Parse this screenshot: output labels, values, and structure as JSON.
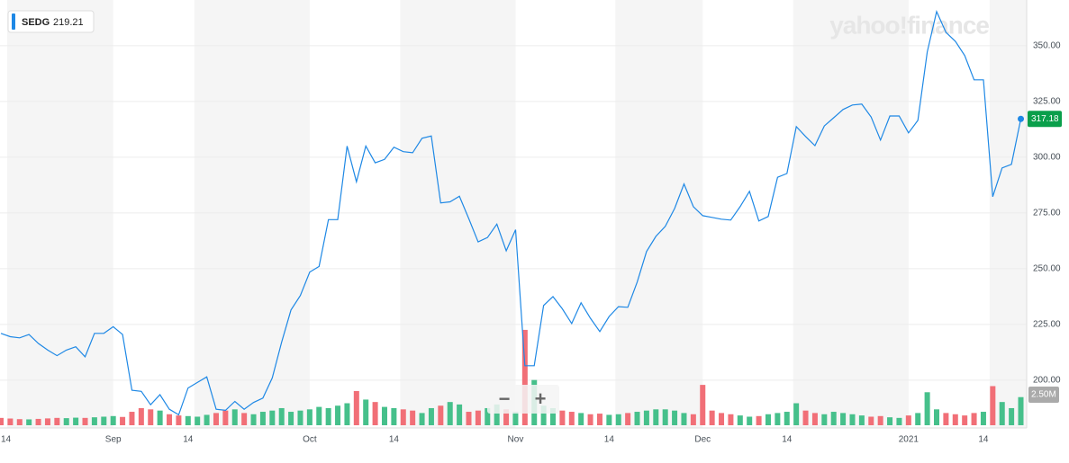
{
  "chart_data": {
    "type": "line",
    "ticker": "SEDG",
    "ticker_price": "219.21",
    "watermark": "yahoo!finance",
    "zoom_out": "−",
    "zoom_in": "+",
    "categories": [
      "14",
      null,
      null,
      null,
      null,
      null,
      null,
      null,
      null,
      null,
      null,
      null,
      "Sep",
      null,
      null,
      null,
      null,
      null,
      null,
      null,
      "14",
      null,
      null,
      null,
      null,
      null,
      null,
      null,
      null,
      null,
      null,
      null,
      null,
      "Oct",
      null,
      null,
      null,
      null,
      null,
      null,
      null,
      null,
      "14",
      null,
      null,
      null,
      null,
      null,
      null,
      null,
      null,
      null,
      null,
      null,
      null,
      "Nov",
      null,
      null,
      null,
      null,
      null,
      null,
      null,
      null,
      null,
      "14",
      null,
      null,
      null,
      null,
      null,
      null,
      null,
      null,
      null,
      "Dec",
      null,
      null,
      null,
      null,
      null,
      null,
      null,
      null,
      "14",
      null,
      null,
      null,
      null,
      null,
      null,
      null,
      null,
      null,
      null,
      null,
      null,
      "2021",
      null,
      null,
      null,
      null,
      null,
      null,
      null,
      "14",
      null,
      null,
      null,
      null
    ],
    "series": [
      {
        "name": "SEDG",
        "color": "#1e88e5",
        "values": [
          221,
          219.5,
          219,
          220.5,
          216.5,
          213.5,
          211,
          213.5,
          215,
          210.5,
          221,
          221,
          224,
          220.5,
          195.5,
          195,
          189,
          193.5,
          187,
          184.5,
          196.5,
          199,
          201.5,
          187,
          186.5,
          190.5,
          187,
          190,
          192,
          201,
          217,
          231.5,
          238,
          248.5,
          251,
          272,
          272,
          305,
          289,
          305,
          297.5,
          299,
          304.5,
          302.5,
          302,
          308.5,
          309.5,
          279.5,
          280,
          282.5,
          272.5,
          262,
          264,
          270,
          258,
          267.5,
          206.5,
          206.5,
          233.5,
          237.5,
          232,
          225.4,
          234.7,
          227.8,
          221.8,
          228.6,
          233,
          232.7,
          244,
          257.7,
          264.5,
          269,
          277,
          288,
          277.8,
          273.8,
          273,
          272.2,
          271.8,
          277.8,
          284.7,
          271.4,
          273.4,
          291,
          292.7,
          313.7,
          309.3,
          305.2,
          314,
          317.7,
          321.4,
          323.4,
          323.8,
          318,
          307.7,
          318.5,
          318.5,
          310.9,
          316.5,
          347.2,
          365.3,
          356,
          352,
          345.6,
          334.7,
          334.7,
          282.3,
          295.2,
          296.8,
          317.18
        ]
      }
    ],
    "ylim": [
      179,
      370.5
    ],
    "yticks": [
      {
        "value": 200,
        "label": "200.00"
      },
      {
        "value": 225,
        "label": "225.00"
      },
      {
        "value": 250,
        "label": "250.00"
      },
      {
        "value": 275,
        "label": "275.00"
      },
      {
        "value": 300,
        "label": "300.00"
      },
      {
        "value": 325,
        "label": "325.00"
      },
      {
        "value": 350,
        "label": "350.00"
      }
    ],
    "grid": true,
    "last_price_color": "#0a9f4b",
    "volume": {
      "up_color": "#46c08b",
      "down_color": "#f16f77",
      "ylim": [
        0,
        10000000
      ],
      "yticks": [
        {
          "value": 2500000,
          "label": "2.50M"
        }
      ],
      "values": [
        600000,
        550000,
        500000,
        480000,
        520000,
        560000,
        600000,
        580000,
        620000,
        600000,
        650000,
        700000,
        750000,
        680000,
        1100000,
        1400000,
        1300000,
        1200000,
        900000,
        800000,
        750000,
        700000,
        850000,
        1000000,
        1200000,
        1300000,
        1000000,
        900000,
        1100000,
        1200000,
        1400000,
        1100000,
        1200000,
        1300000,
        1500000,
        1400000,
        1600000,
        1800000,
        2800000,
        2100000,
        1900000,
        1500000,
        1400000,
        1300000,
        1200000,
        1000000,
        1400000,
        1600000,
        1900000,
        1700000,
        1100000,
        1200000,
        1400000,
        1700000,
        1300000,
        1100000,
        7800000,
        3700000,
        1600000,
        1400000,
        1200000,
        1100000,
        1000000,
        900000,
        950000,
        850000,
        900000,
        1000000,
        1100000,
        1200000,
        1300000,
        1300000,
        1200000,
        1000000,
        900000,
        3300000,
        1200000,
        1000000,
        900000,
        800000,
        700000,
        750000,
        900000,
        1000000,
        1100000,
        1800000,
        1200000,
        1000000,
        900000,
        1100000,
        1000000,
        900000,
        800000,
        700000,
        750000,
        650000,
        600000,
        800000,
        1000000,
        2700000,
        1300000,
        1000000,
        900000,
        800000,
        1000000,
        1100000,
        3200000,
        1900000,
        1400000,
        2300000
      ]
    }
  }
}
